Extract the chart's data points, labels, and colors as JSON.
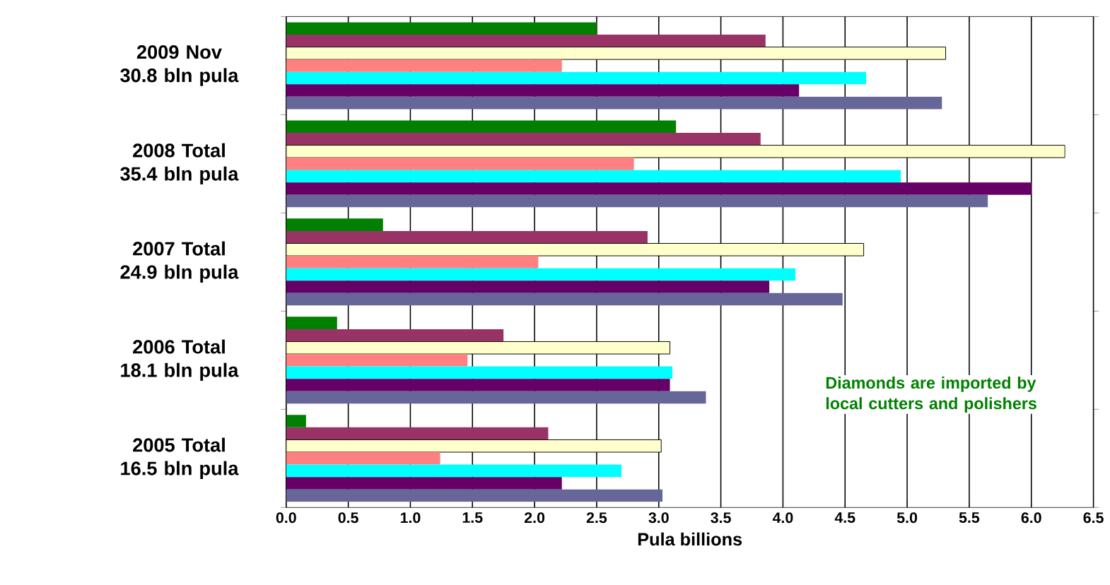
{
  "chart_data": {
    "type": "bar",
    "orientation": "horizontal",
    "xlabel": "Pula billions",
    "categories": [
      "2009 Nov 30.8 bln pula",
      "2008 Total 35.4 bln pula",
      "2007 Total 24.9 bln pula",
      "2006 Total 18.1 bln pula",
      "2005 Total 16.5 bln pula"
    ],
    "series": [
      {
        "color": "#008000",
        "values": [
          2.5,
          3.14,
          0.78,
          0.41,
          0.16
        ]
      },
      {
        "color": "#993366",
        "values": [
          3.86,
          3.82,
          2.91,
          1.75,
          2.11
        ]
      },
      {
        "color": "#ffffcc",
        "values": [
          5.31,
          6.27,
          4.65,
          3.09,
          3.02
        ]
      },
      {
        "color": "#ff8080",
        "values": [
          2.22,
          2.8,
          2.03,
          1.46,
          1.24
        ]
      },
      {
        "color": "#00ffff",
        "values": [
          4.67,
          4.95,
          4.1,
          3.11,
          2.7
        ]
      },
      {
        "color": "#660066",
        "values": [
          4.13,
          6.0,
          3.89,
          3.09,
          2.22
        ]
      },
      {
        "color": "#666699",
        "values": [
          5.28,
          5.65,
          4.48,
          3.38,
          3.03
        ]
      }
    ],
    "xlim": [
      0,
      6.5
    ],
    "xticks": [
      {
        "value": 0,
        "label": "0.0"
      },
      {
        "value": 0.5,
        "label": "0.5"
      },
      {
        "value": 1,
        "label": "1.0"
      },
      {
        "value": 1.5,
        "label": "1.5"
      },
      {
        "value": 2,
        "label": "2.0"
      },
      {
        "value": 2.5,
        "label": "2.5"
      },
      {
        "value": 3,
        "label": "3.0"
      },
      {
        "value": 3.5,
        "label": "3.5"
      },
      {
        "value": 4,
        "label": "4.0"
      },
      {
        "value": 4.5,
        "label": "4.5"
      },
      {
        "value": 5,
        "label": "5.0"
      },
      {
        "value": 5.5,
        "label": "5.5"
      },
      {
        "value": 6,
        "label": "6.0"
      },
      {
        "value": 6.5,
        "label": "6.5"
      }
    ],
    "grid": "x",
    "annotations": [
      "Diamonds are imported by local cutters and polishers"
    ]
  }
}
